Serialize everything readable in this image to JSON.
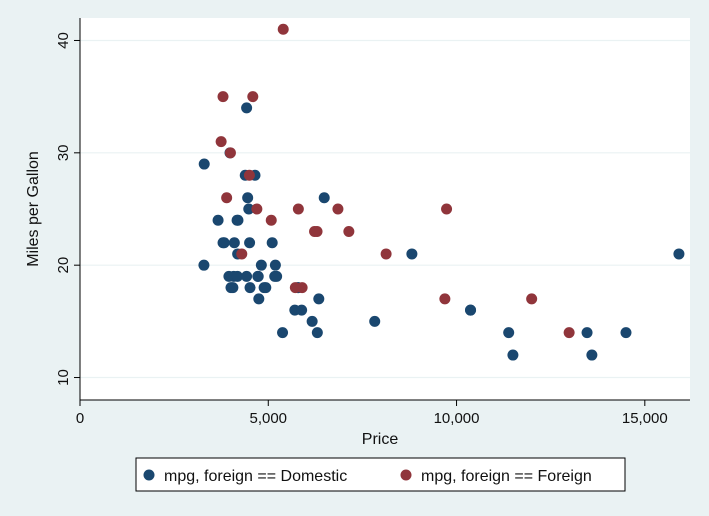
{
  "chart_data": {
    "type": "scatter",
    "xlabel": "Price",
    "ylabel": "Miles per Gallon",
    "xlim": [
      0,
      16200
    ],
    "ylim": [
      8,
      42
    ],
    "xticks": [
      {
        "value": 0,
        "label": "0"
      },
      {
        "value": 5000,
        "label": "5,000"
      },
      {
        "value": 10000,
        "label": "10,000"
      },
      {
        "value": 15000,
        "label": "15,000"
      }
    ],
    "yticks": [
      {
        "value": 10,
        "label": "10"
      },
      {
        "value": 20,
        "label": "20"
      },
      {
        "value": 30,
        "label": "30"
      },
      {
        "value": 40,
        "label": "40"
      }
    ],
    "grid": true,
    "legend": "bottom",
    "series": [
      {
        "name": "mpg, foreign == Domestic",
        "color": "#1a476f",
        "points": [
          [
            4099,
            22
          ],
          [
            4749,
            17
          ],
          [
            3799,
            22
          ],
          [
            4816,
            20
          ],
          [
            7827,
            15
          ],
          [
            5788,
            18
          ],
          [
            4453,
            26
          ],
          [
            5189,
            20
          ],
          [
            10372,
            16
          ],
          [
            4082,
            19
          ],
          [
            11385,
            14
          ],
          [
            14500,
            14
          ],
          [
            15906,
            21
          ],
          [
            3299,
            29
          ],
          [
            5705,
            16
          ],
          [
            4504,
            22
          ],
          [
            5104,
            22
          ],
          [
            3667,
            24
          ],
          [
            3955,
            19
          ],
          [
            3984,
            30
          ],
          [
            4010,
            18
          ],
          [
            5886,
            16
          ],
          [
            6342,
            17
          ],
          [
            4389,
            28
          ],
          [
            4187,
            21
          ],
          [
            11497,
            12
          ],
          [
            13594,
            12
          ],
          [
            13466,
            14
          ],
          [
            3829,
            22
          ],
          [
            5379,
            14
          ],
          [
            6165,
            15
          ],
          [
            4516,
            18
          ],
          [
            6303,
            14
          ],
          [
            3291,
            20
          ],
          [
            8814,
            21
          ],
          [
            5172,
            19
          ],
          [
            4733,
            19
          ],
          [
            4890,
            18
          ],
          [
            4181,
            19
          ],
          [
            4195,
            24
          ],
          [
            10371,
            16
          ],
          [
            4647,
            28
          ],
          [
            4425,
            34
          ],
          [
            4482,
            25
          ],
          [
            6486,
            26
          ],
          [
            4060,
            18
          ],
          [
            5798,
            18
          ],
          [
            4934,
            18
          ],
          [
            5222,
            19
          ],
          [
            4723,
            19
          ],
          [
            4424,
            19
          ],
          [
            4172,
            24
          ]
        ]
      },
      {
        "name": "mpg, foreign == Foreign",
        "color": "#90353b",
        "points": [
          [
            9690,
            17
          ],
          [
            6295,
            23
          ],
          [
            9735,
            25
          ],
          [
            6229,
            23
          ],
          [
            4589,
            35
          ],
          [
            5079,
            24
          ],
          [
            8129,
            21
          ],
          [
            4296,
            21
          ],
          [
            5799,
            25
          ],
          [
            4499,
            28
          ],
          [
            3995,
            30
          ],
          [
            12990,
            14
          ],
          [
            3895,
            26
          ],
          [
            3798,
            35
          ],
          [
            5899,
            18
          ],
          [
            3748,
            31
          ],
          [
            5719,
            18
          ],
          [
            7140,
            23
          ],
          [
            5397,
            41
          ],
          [
            4697,
            25
          ],
          [
            6850,
            25
          ],
          [
            11995,
            17
          ]
        ]
      }
    ]
  }
}
